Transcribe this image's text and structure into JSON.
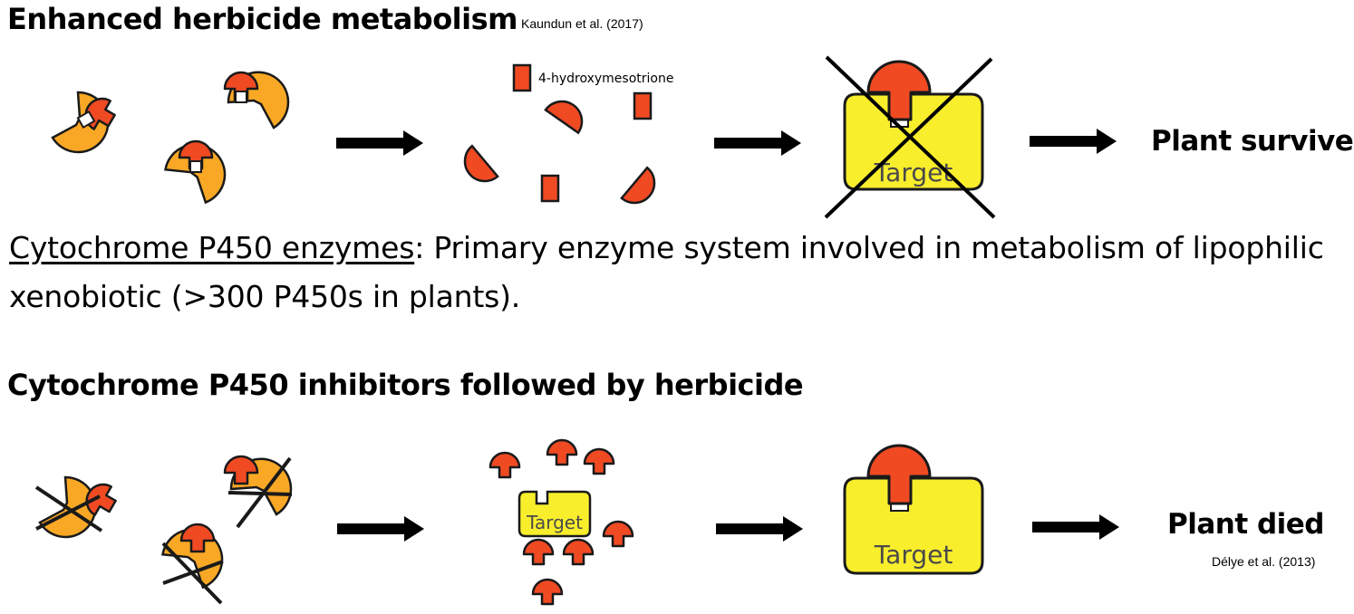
{
  "top": {
    "title": "Enhanced herbicide metabolism",
    "citation": "Kaundun et al. (2017)",
    "metabolite_label": "4-hydroxymesotrione",
    "target_label": "Target",
    "outcome": "Plant survive"
  },
  "description": {
    "term": "Cytochrome P450 enzymes",
    "text_line1": ": Primary enzyme system involved in metabolism of lipophilic",
    "text_line2": "xenobiotic (>300 P450s in plants)."
  },
  "bottom": {
    "title": "Cytochrome P450 inhibitors followed by herbicide",
    "target_label_small": "Target",
    "target_label": "Target",
    "outcome": "Plant died",
    "citation": "Délye et al. (2013)"
  },
  "colors": {
    "enzyme": "#f9a825",
    "herbicide": "#f04a23",
    "target": "#f9ee2c",
    "outline": "#1a1a1a"
  }
}
